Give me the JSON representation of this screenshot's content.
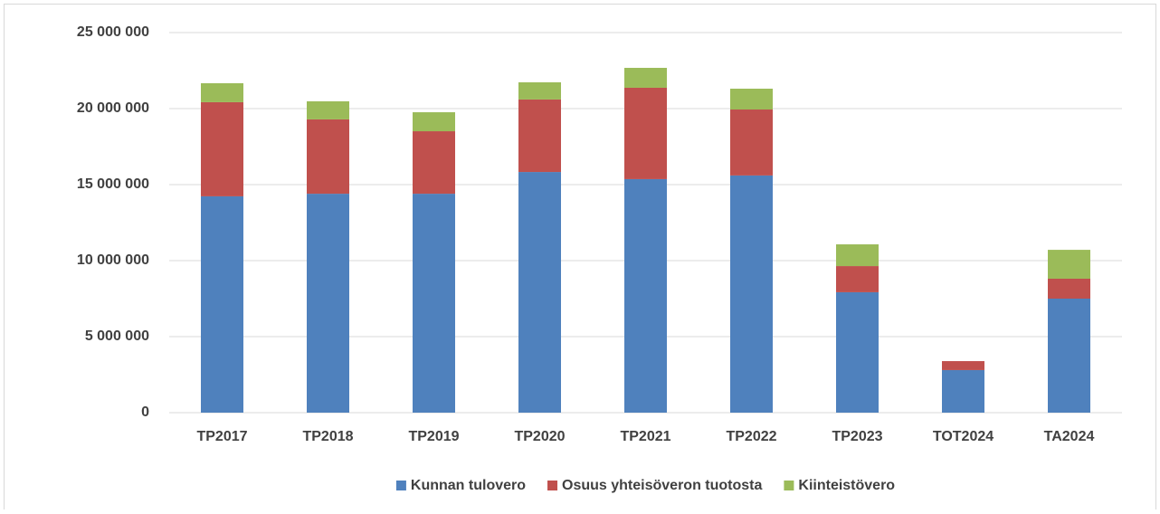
{
  "chart_data": {
    "type": "stacked_bar",
    "categories": [
      "TP2017",
      "TP2018",
      "TP2019",
      "TP2020",
      "TP2021",
      "TP2022",
      "TP2023",
      "TOT2024",
      "TA2024"
    ],
    "series": [
      {
        "name": "Kunnan tulovero",
        "color": "#4f81bd",
        "values": [
          14230000,
          14400000,
          14400000,
          15830000,
          15360000,
          15600000,
          7920000,
          2800000,
          7500000
        ]
      },
      {
        "name": "Osuus yhteisöveron tuotosta",
        "color": "#c0504d",
        "values": [
          6190000,
          4890000,
          4110000,
          4770000,
          6010000,
          4340000,
          1720000,
          590000,
          1310000
        ]
      },
      {
        "name": "Kiinteistövero",
        "color": "#9bbb59",
        "values": [
          1250000,
          1190000,
          1250000,
          1130000,
          1310000,
          1370000,
          1430000,
          0,
          1900000
        ]
      }
    ],
    "ylim": [
      0,
      25000000
    ],
    "yticks": [
      0,
      {
        "value": 5000000,
        "label": "5 000 000"
      },
      {
        "value": 10000000,
        "label": "10 000 000"
      },
      {
        "value": 15000000,
        "label": "15 000 000"
      },
      {
        "value": 20000000,
        "label": "20 000 000"
      },
      {
        "value": 25000000,
        "label": "25 000 000"
      }
    ],
    "grid": true,
    "legend": "bottom"
  }
}
